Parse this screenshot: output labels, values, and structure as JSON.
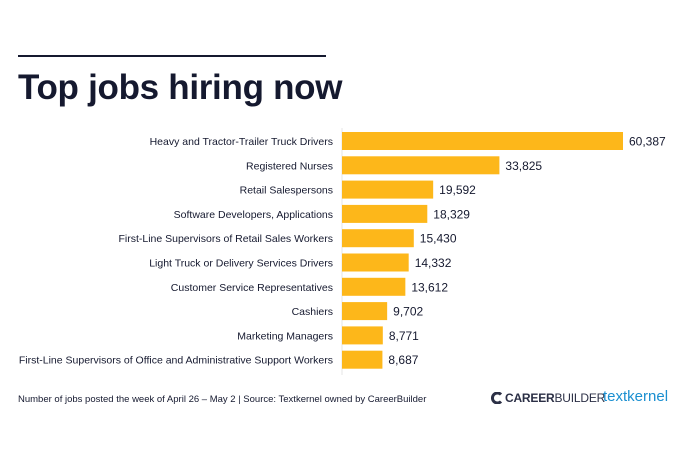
{
  "title": "Top jobs hiring now",
  "footer": "Number of jobs posted the week of April 26 – May 2  |  Source: Textkernel owned by CareerBuilder",
  "logos": {
    "careerbuilder": "CAREERBUILDER",
    "textkernel": "textkernel"
  },
  "colors": {
    "bar": "#FDB71A",
    "text": "#15192F",
    "textkernel": "#1A8FD0"
  },
  "chart_data": {
    "type": "bar",
    "orientation": "horizontal",
    "title": "Top jobs hiring now",
    "categories": [
      "Heavy and Tractor-Trailer Truck Drivers",
      "Registered Nurses",
      "Retail Salespersons",
      "Software Developers, Applications",
      "First-Line Supervisors of Retail Sales Workers",
      "Light Truck or Delivery Services Drivers",
      "Customer Service Representatives",
      "Cashiers",
      "Marketing Managers",
      "First-Line Supervisors of Office and Administrative Support Workers"
    ],
    "values": [
      60387,
      33825,
      19592,
      18329,
      15430,
      14332,
      13612,
      9702,
      8771,
      8687
    ],
    "value_labels": [
      "60,387",
      "33,825",
      "19,592",
      "18,329",
      "15,430",
      "14,332",
      "13,612",
      "9,702",
      "8,771",
      "8,687"
    ],
    "grid": false,
    "legend": "none"
  }
}
